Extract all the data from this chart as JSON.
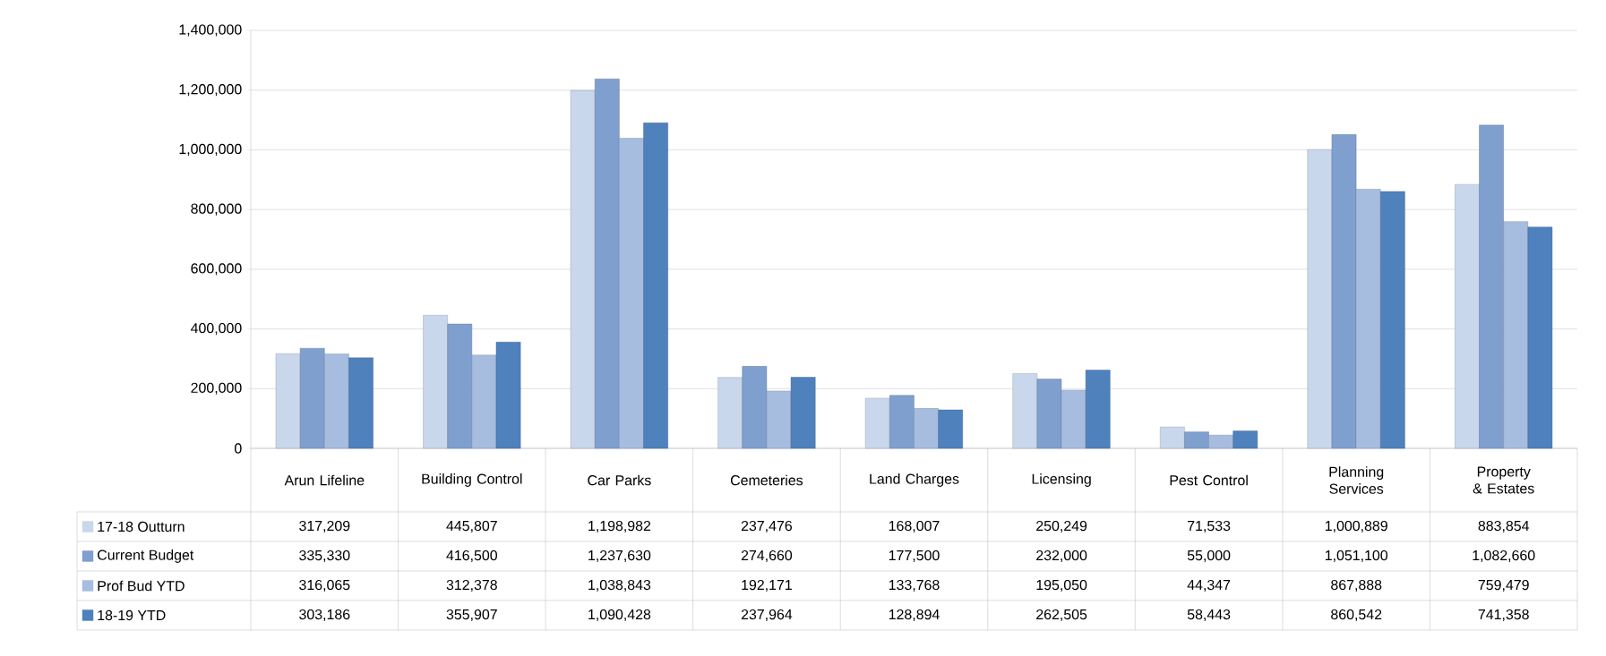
{
  "chart_data": {
    "type": "bar",
    "categories": [
      "Arun Lifeline",
      "Building Control",
      "Car Parks",
      "Cemeteries",
      "Land Charges",
      "Licensing",
      "Pest Control",
      "Planning Services",
      "Property & Estates"
    ],
    "series": [
      {
        "name": "17-18 Outturn",
        "color": "#c9d7ec",
        "values": [
          317209,
          445807,
          1198982,
          237476,
          168007,
          250249,
          71533,
          1000889,
          883854
        ],
        "value_labels": [
          "317,209",
          "445,807",
          "1,198,982",
          "237,476",
          "168,007",
          "250,249",
          "71,533",
          "1,000,889",
          "883,854"
        ]
      },
      {
        "name": "Current Budget",
        "color": "#7f9fcf",
        "values": [
          335330,
          416500,
          1237630,
          274660,
          177500,
          232000,
          55000,
          1051100,
          1082660
        ],
        "value_labels": [
          "335,330",
          "416,500",
          "1,237,630",
          "274,660",
          "177,500",
          "232,000",
          "55,000",
          "1,051,100",
          "1,082,660"
        ]
      },
      {
        "name": "Prof Bud YTD",
        "color": "#a6bde0",
        "values": [
          316065,
          312378,
          1038843,
          192171,
          133768,
          195050,
          44347,
          867888,
          759479
        ],
        "value_labels": [
          "316,065",
          "312,378",
          "1,038,843",
          "192,171",
          "133,768",
          "195,050",
          "44,347",
          "867,888",
          "759,479"
        ]
      },
      {
        "name": "18-19 YTD",
        "color": "#4f81bd",
        "values": [
          303186,
          355907,
          1090428,
          237964,
          128894,
          262505,
          58443,
          860542,
          741358
        ],
        "value_labels": [
          "303,186",
          "355,907",
          "1,090,428",
          "237,964",
          "128,894",
          "262,505",
          "58,443",
          "860,542",
          "741,358"
        ]
      }
    ],
    "ylim": [
      0,
      1400000
    ],
    "yticks": [
      0,
      {
        "value": 200000,
        "label": "200,000"
      },
      {
        "value": 400000,
        "label": "400,000"
      },
      {
        "value": 600000,
        "label": "600,000"
      },
      {
        "value": 800000,
        "label": "800,000"
      },
      {
        "value": 1000000,
        "label": "1,000,000"
      },
      {
        "value": 1200000,
        "label": "1,200,000"
      },
      {
        "value": 1400000,
        "label": "1,400,000"
      }
    ],
    "grid": "y",
    "legend": "bottom left"
  }
}
